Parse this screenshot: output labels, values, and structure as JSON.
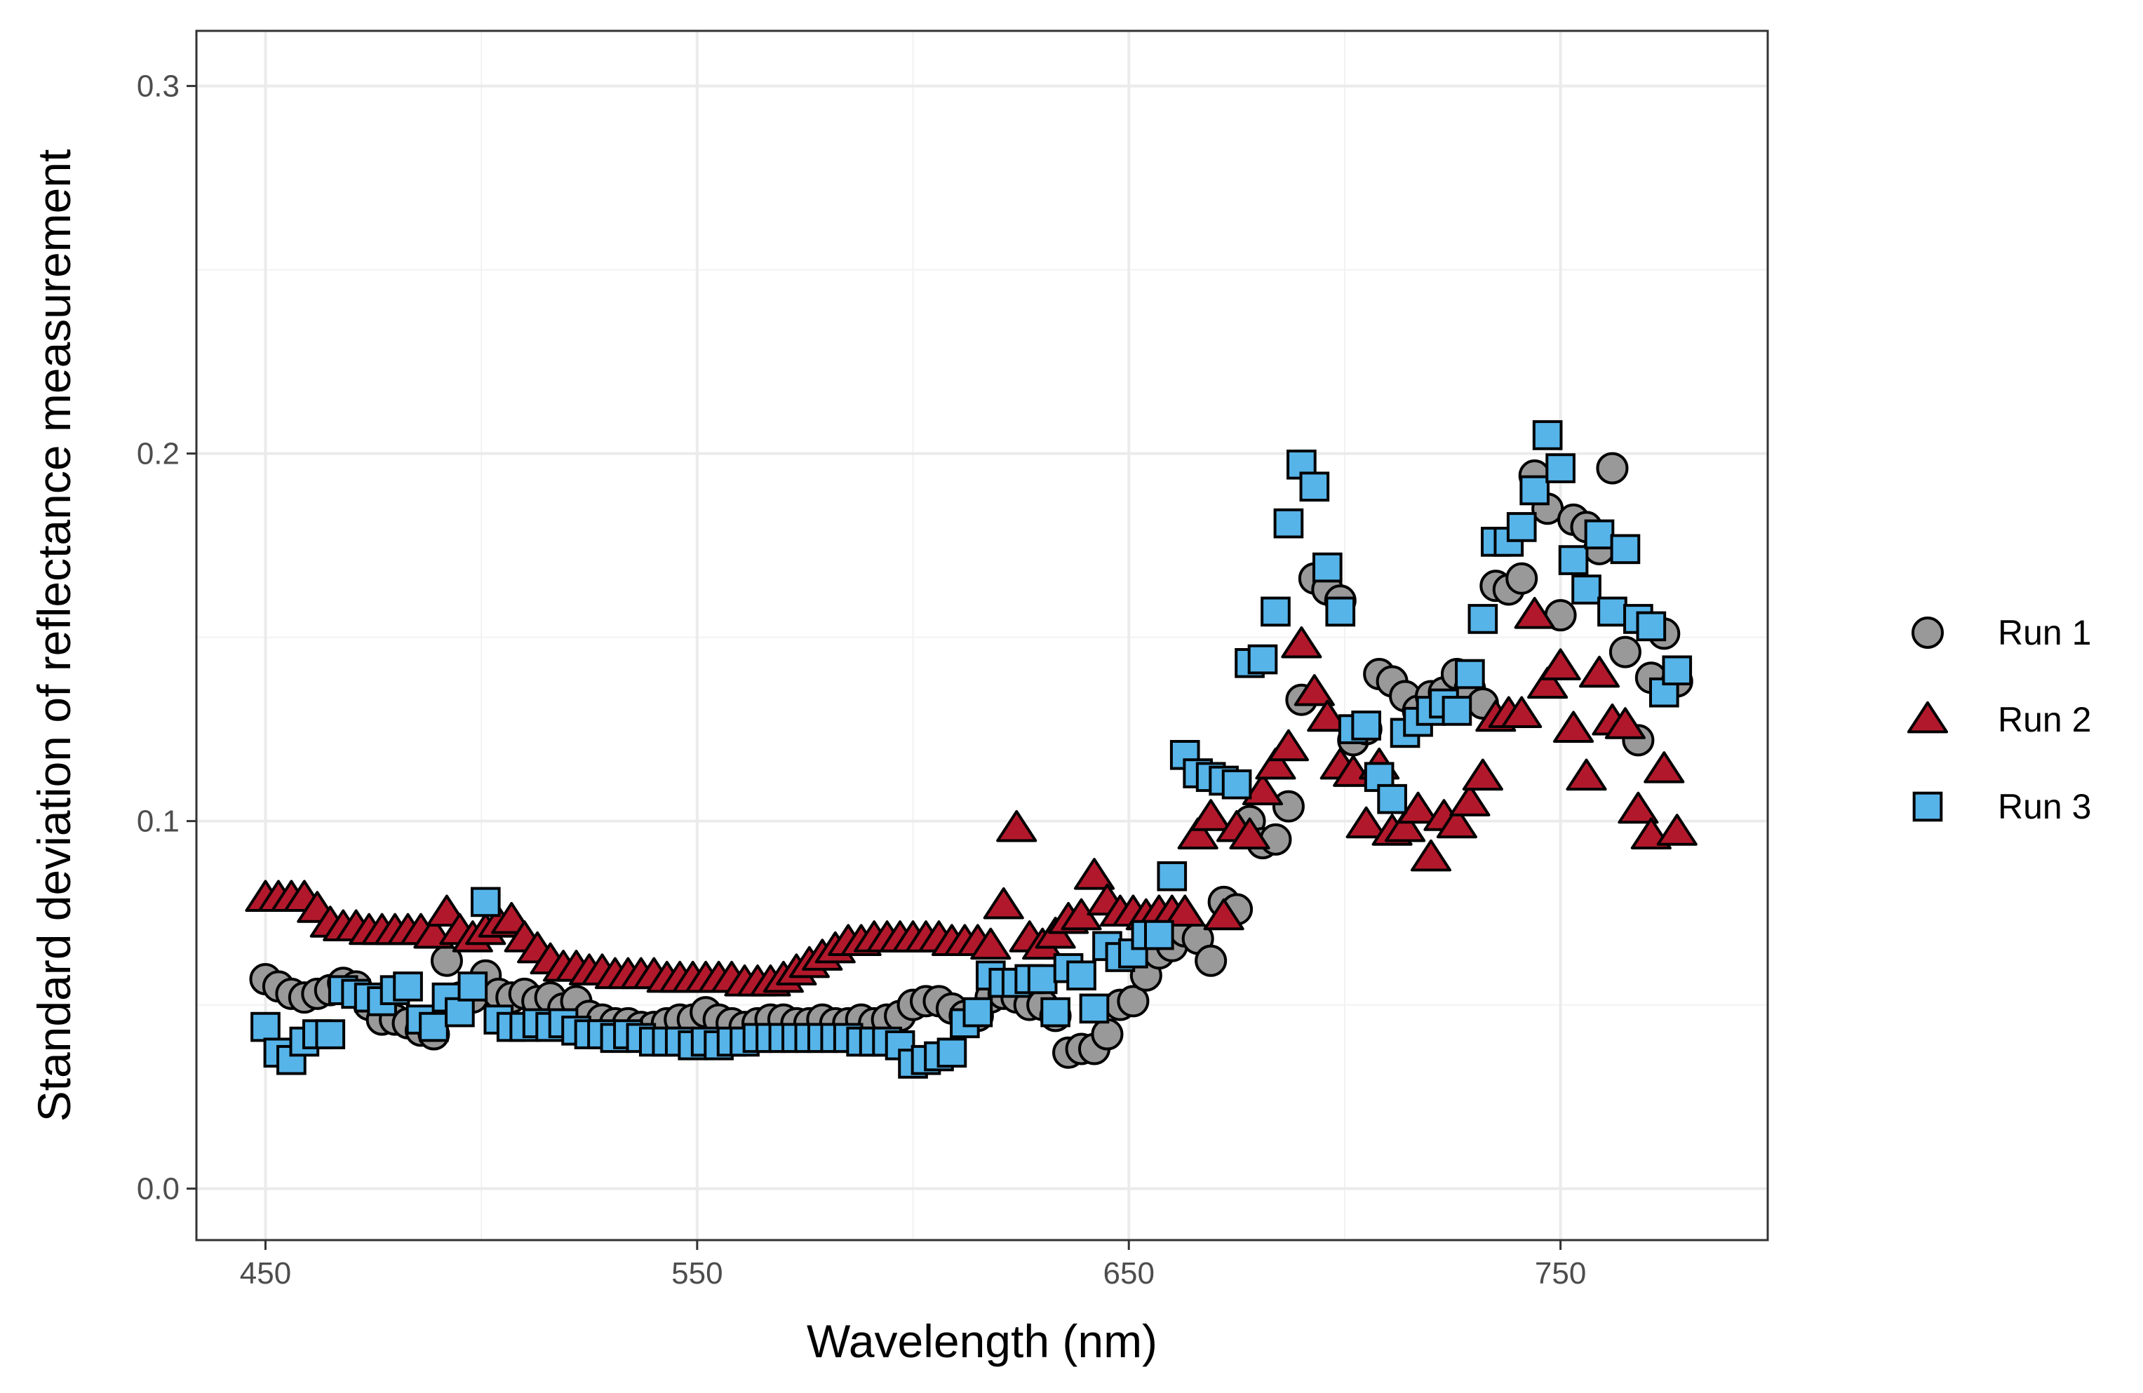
{
  "chart_data": {
    "type": "scatter",
    "title": "",
    "xlabel": "Wavelength (nm)",
    "ylabel": "Standard deviation of reflectance measurement",
    "xlim": [
      434,
      798
    ],
    "ylim": [
      -0.014,
      0.315
    ],
    "x_ticks": [
      450,
      550,
      650,
      750
    ],
    "x_tick_labels": [
      "450",
      "550",
      "650",
      "750"
    ],
    "x_minor": [
      500,
      600,
      700
    ],
    "y_ticks": [
      0.0,
      0.1,
      0.2,
      0.3
    ],
    "y_tick_labels": [
      "0.0",
      "0.1",
      "0.2",
      "0.3"
    ],
    "y_minor": [
      0.05,
      0.15,
      0.25
    ],
    "grid": true,
    "legend_position": "right",
    "series": [
      {
        "name": "Run 1",
        "label": "Run 1",
        "marker": "circle",
        "color": "#999999",
        "x": [
          450,
          453,
          456,
          459,
          462,
          465,
          468,
          471,
          474,
          477,
          480,
          483,
          486,
          489,
          492,
          495,
          498,
          501,
          504,
          507,
          510,
          513,
          516,
          519,
          522,
          525,
          528,
          531,
          534,
          537,
          540,
          543,
          546,
          549,
          552,
          555,
          558,
          561,
          564,
          567,
          570,
          573,
          576,
          579,
          582,
          585,
          588,
          591,
          594,
          597,
          600,
          603,
          606,
          609,
          612,
          615,
          618,
          621,
          624,
          627,
          630,
          633,
          636,
          639,
          642,
          645,
          648,
          651,
          654,
          657,
          660,
          663,
          666,
          669,
          672,
          675,
          678,
          681,
          684,
          687,
          690,
          693,
          696,
          699,
          702,
          705,
          708,
          711,
          714,
          717,
          720,
          723,
          726,
          729,
          732,
          735,
          738,
          741,
          744,
          747,
          750,
          753,
          756,
          759,
          762,
          765,
          768,
          771,
          774,
          777
        ],
        "values": [
          0.057,
          0.055,
          0.053,
          0.052,
          0.053,
          0.054,
          0.056,
          0.055,
          0.05,
          0.046,
          0.046,
          0.045,
          0.043,
          0.042,
          0.062,
          0.052,
          0.052,
          0.058,
          0.053,
          0.052,
          0.053,
          0.051,
          0.052,
          0.049,
          0.051,
          0.047,
          0.046,
          0.045,
          0.045,
          0.044,
          0.044,
          0.045,
          0.046,
          0.046,
          0.048,
          0.046,
          0.045,
          0.044,
          0.045,
          0.046,
          0.046,
          0.045,
          0.045,
          0.046,
          0.045,
          0.045,
          0.046,
          0.045,
          0.046,
          0.047,
          0.05,
          0.051,
          0.051,
          0.049,
          0.047,
          0.047,
          0.052,
          0.053,
          0.052,
          0.05,
          0.05,
          0.047,
          0.037,
          0.038,
          0.038,
          0.042,
          0.05,
          0.051,
          0.058,
          0.064,
          0.066,
          0.07,
          0.068,
          0.062,
          0.078,
          0.076,
          0.1,
          0.094,
          0.095,
          0.104,
          0.133,
          0.166,
          0.163,
          0.16,
          0.122,
          0.125,
          0.14,
          0.138,
          0.134,
          0.13,
          0.134,
          0.135,
          0.14,
          0.136,
          0.132,
          0.164,
          0.163,
          0.166,
          0.194,
          0.185,
          0.156,
          0.182,
          0.18,
          0.174,
          0.196,
          0.146,
          0.122,
          0.139,
          0.151,
          0.138
        ]
      },
      {
        "name": "Run 2",
        "label": "Run 2",
        "marker": "triangle",
        "color": "#b2182b",
        "x": [
          450,
          453,
          456,
          459,
          462,
          465,
          468,
          471,
          474,
          477,
          480,
          483,
          486,
          489,
          492,
          495,
          498,
          501,
          504,
          507,
          510,
          513,
          516,
          519,
          522,
          525,
          528,
          531,
          534,
          537,
          540,
          543,
          546,
          549,
          552,
          555,
          558,
          561,
          564,
          567,
          570,
          573,
          576,
          579,
          582,
          585,
          588,
          591,
          594,
          597,
          600,
          603,
          606,
          609,
          612,
          615,
          618,
          621,
          624,
          627,
          630,
          633,
          636,
          639,
          642,
          645,
          648,
          651,
          654,
          657,
          660,
          663,
          666,
          669,
          672,
          675,
          678,
          681,
          684,
          687,
          690,
          693,
          696,
          699,
          702,
          705,
          708,
          711,
          714,
          717,
          720,
          723,
          726,
          729,
          732,
          735,
          738,
          741,
          744,
          747,
          750,
          753,
          756,
          759,
          762,
          765,
          768,
          771,
          774,
          777
        ],
        "values": [
          0.079,
          0.079,
          0.079,
          0.079,
          0.076,
          0.072,
          0.071,
          0.071,
          0.07,
          0.07,
          0.07,
          0.07,
          0.07,
          0.069,
          0.075,
          0.07,
          0.068,
          0.07,
          0.072,
          0.073,
          0.068,
          0.065,
          0.062,
          0.06,
          0.06,
          0.059,
          0.059,
          0.058,
          0.058,
          0.058,
          0.058,
          0.057,
          0.057,
          0.057,
          0.057,
          0.057,
          0.057,
          0.056,
          0.056,
          0.056,
          0.057,
          0.059,
          0.061,
          0.063,
          0.065,
          0.067,
          0.067,
          0.068,
          0.068,
          0.068,
          0.068,
          0.068,
          0.068,
          0.067,
          0.067,
          0.067,
          0.066,
          0.077,
          0.098,
          0.068,
          0.066,
          0.069,
          0.073,
          0.074,
          0.085,
          0.078,
          0.075,
          0.075,
          0.074,
          0.075,
          0.075,
          0.075,
          0.096,
          0.101,
          0.074,
          0.098,
          0.096,
          0.108,
          0.115,
          0.12,
          0.148,
          0.135,
          0.128,
          0.115,
          0.113,
          0.099,
          0.115,
          0.097,
          0.098,
          0.103,
          0.09,
          0.101,
          0.099,
          0.105,
          0.112,
          0.128,
          0.129,
          0.129,
          0.156,
          0.137,
          0.142,
          0.125,
          0.112,
          0.14,
          0.127,
          0.126,
          0.103,
          0.096,
          0.114,
          0.097
        ]
      },
      {
        "name": "Run 3",
        "label": "Run 3",
        "marker": "square",
        "color": "#56b4e9",
        "x": [
          450,
          453,
          456,
          459,
          462,
          465,
          468,
          471,
          474,
          477,
          480,
          483,
          486,
          489,
          492,
          495,
          498,
          501,
          504,
          507,
          510,
          513,
          516,
          519,
          522,
          525,
          528,
          531,
          534,
          537,
          540,
          543,
          546,
          549,
          552,
          555,
          558,
          561,
          564,
          567,
          570,
          573,
          576,
          579,
          582,
          585,
          588,
          591,
          594,
          597,
          600,
          603,
          606,
          609,
          612,
          615,
          618,
          621,
          624,
          627,
          630,
          633,
          636,
          639,
          642,
          645,
          648,
          651,
          654,
          657,
          660,
          663,
          666,
          669,
          672,
          675,
          678,
          681,
          684,
          687,
          690,
          693,
          696,
          699,
          702,
          705,
          708,
          711,
          714,
          717,
          720,
          723,
          726,
          729,
          732,
          735,
          738,
          741,
          744,
          747,
          750,
          753,
          756,
          759,
          762,
          765,
          768,
          771,
          774,
          777
        ],
        "values": [
          0.044,
          0.037,
          0.035,
          0.04,
          0.042,
          0.042,
          0.054,
          0.053,
          0.052,
          0.051,
          0.054,
          0.055,
          0.046,
          0.044,
          0.052,
          0.048,
          0.055,
          0.078,
          0.046,
          0.044,
          0.044,
          0.045,
          0.044,
          0.045,
          0.043,
          0.042,
          0.042,
          0.041,
          0.042,
          0.041,
          0.04,
          0.04,
          0.04,
          0.039,
          0.04,
          0.039,
          0.04,
          0.04,
          0.041,
          0.041,
          0.041,
          0.041,
          0.041,
          0.041,
          0.041,
          0.041,
          0.04,
          0.04,
          0.04,
          0.039,
          0.034,
          0.035,
          0.036,
          0.037,
          0.045,
          0.048,
          0.058,
          0.056,
          0.056,
          0.057,
          0.057,
          0.048,
          0.06,
          0.058,
          0.049,
          0.066,
          0.063,
          0.064,
          0.069,
          0.069,
          0.085,
          0.118,
          0.113,
          0.112,
          0.111,
          0.11,
          0.143,
          0.144,
          0.157,
          0.181,
          0.197,
          0.191,
          0.169,
          0.157,
          0.125,
          0.126,
          0.112,
          0.106,
          0.124,
          0.127,
          0.13,
          0.132,
          0.13,
          0.14,
          0.155,
          0.176,
          0.176,
          0.18,
          0.19,
          0.205,
          0.196,
          0.171,
          0.163,
          0.178,
          0.157,
          0.174,
          0.155,
          0.153,
          0.135,
          0.141
        ]
      }
    ]
  }
}
